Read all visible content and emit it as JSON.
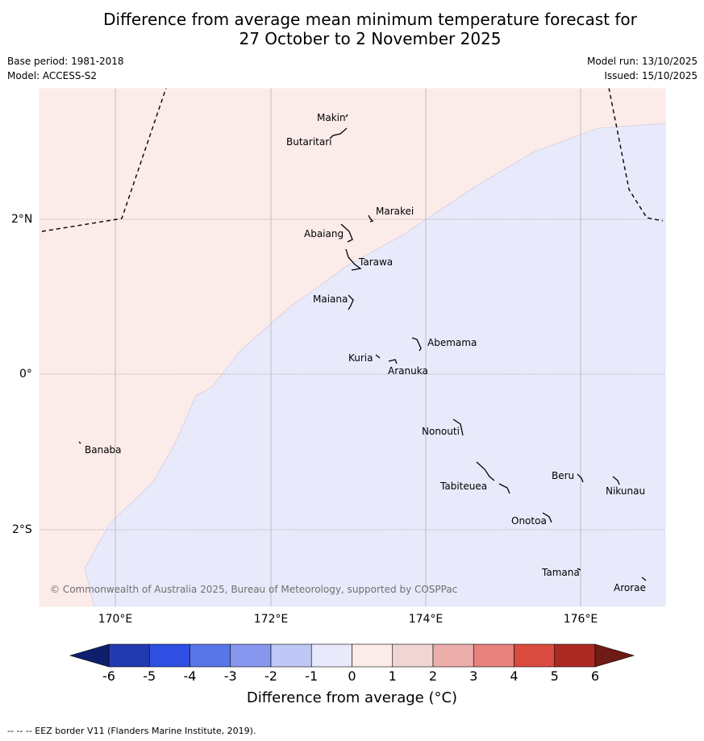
{
  "title": {
    "line1": "Difference from average mean minimum temperature forecast for",
    "line2": "27 October to 2 November 2025"
  },
  "meta": {
    "base_period": "Base period: 1981-2018",
    "model": "Model: ACCESS-S2",
    "model_run": "Model run: 13/10/2025",
    "issued": "Issued: 15/10/2025"
  },
  "map": {
    "latitude_labels": [
      "2°N",
      "0°",
      "2°S"
    ],
    "longitude_labels": [
      "170°E",
      "172°E",
      "174°E",
      "176°E"
    ],
    "fill_colors": {
      "warm_zone": "#fbebe9",
      "cool_zone": "#e8eafb"
    },
    "places": [
      {
        "id": "makin",
        "name": "Makin"
      },
      {
        "id": "butaritari",
        "name": "Butaritari"
      },
      {
        "id": "marakei",
        "name": "Marakei"
      },
      {
        "id": "abaiang",
        "name": "Abaiang"
      },
      {
        "id": "tarawa",
        "name": "Tarawa"
      },
      {
        "id": "maiana",
        "name": "Maiana"
      },
      {
        "id": "abemama",
        "name": "Abemama"
      },
      {
        "id": "kuria",
        "name": "Kuria"
      },
      {
        "id": "aranuka",
        "name": "Aranuka"
      },
      {
        "id": "nonouti",
        "name": "Nonouti"
      },
      {
        "id": "banaba",
        "name": "Banaba"
      },
      {
        "id": "beru",
        "name": "Beru"
      },
      {
        "id": "nikunau",
        "name": "Nikunau"
      },
      {
        "id": "tabiteuea",
        "name": "Tabiteuea"
      },
      {
        "id": "onotoa",
        "name": "Onotoa"
      },
      {
        "id": "tamana",
        "name": "Tamana"
      },
      {
        "id": "arorae",
        "name": "Arorae"
      }
    ],
    "copyright": "© Commonwealth of Australia 2025, Bureau of Meteorology, supported by COSPPac"
  },
  "colorbar": {
    "ticks": [
      "-6",
      "-5",
      "-4",
      "-3",
      "-2",
      "-1",
      "0",
      "1",
      "2",
      "3",
      "4",
      "5",
      "6"
    ],
    "colors": [
      "#0f1f6e",
      "#2339b0",
      "#2f4fe3",
      "#5a75e8",
      "#8797ef",
      "#bfc7f6",
      "#e8eafb",
      "#fbebe9",
      "#efd6d4",
      "#ecaeab",
      "#e6827b",
      "#da4b3f",
      "#ad2a24",
      "#6e1c14"
    ],
    "label": "Difference from average (°C)"
  },
  "footer": "--  --  -- EEZ border V11 (Flanders Marine Institute, 2019)."
}
